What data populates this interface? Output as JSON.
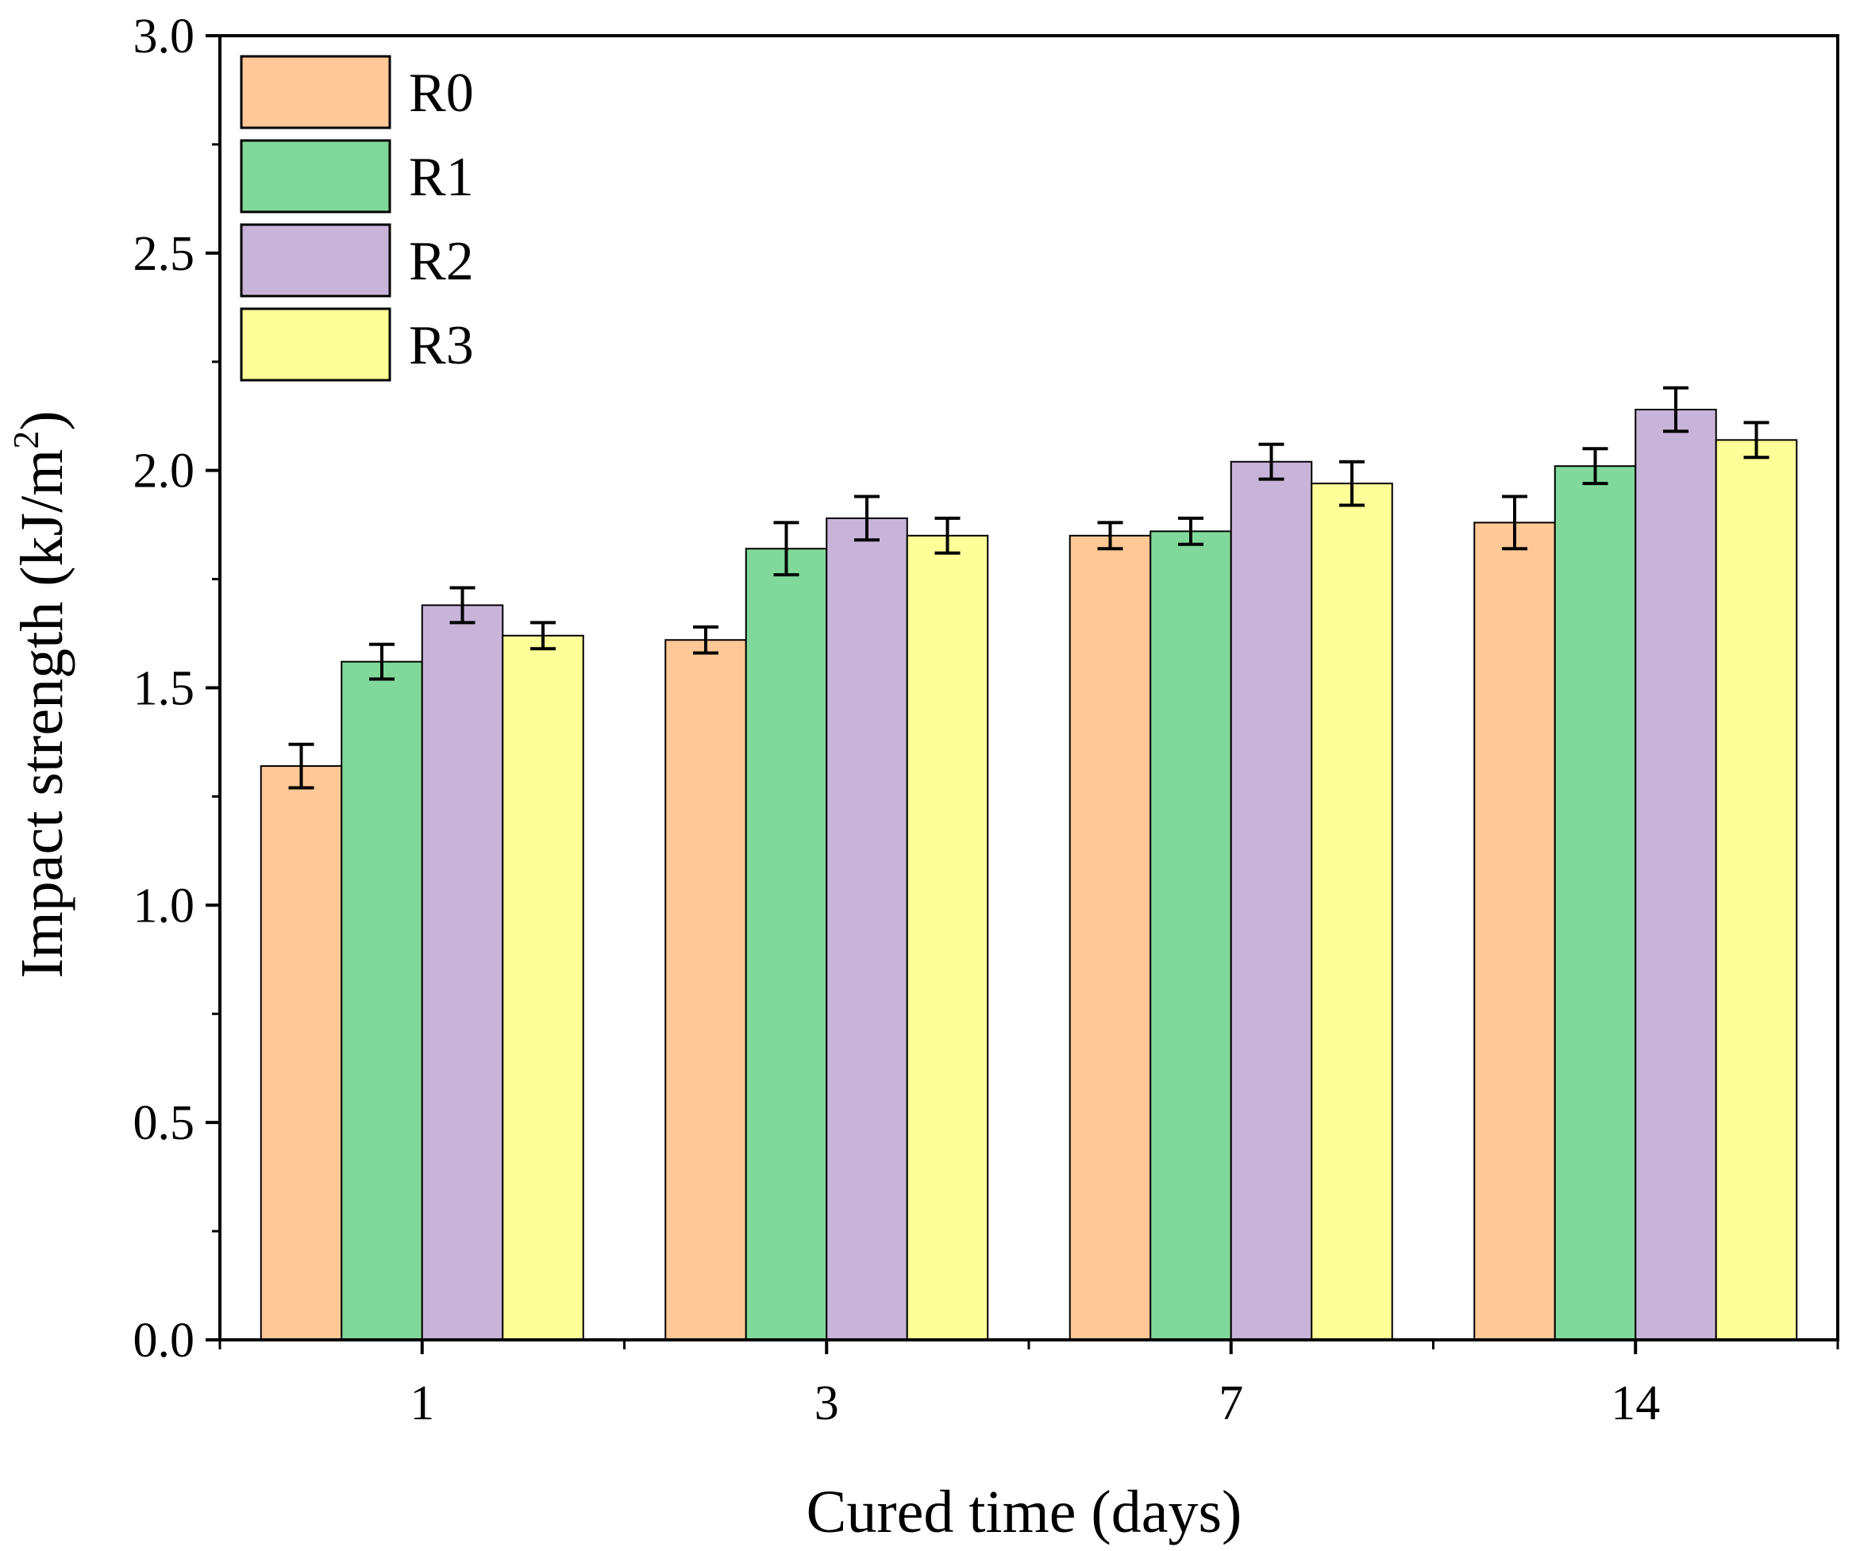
{
  "chart_data": {
    "type": "bar",
    "xlabel": "Cured time (days)",
    "ylabel_main": "Impact strength (kJ/m",
    "ylabel_sup": "2",
    "ylabel_close": ")",
    "ylim": [
      0,
      3.0
    ],
    "yticks": [
      "0.0",
      "0.5",
      "1.0",
      "1.5",
      "2.0",
      "2.5",
      "3.0"
    ],
    "categories": [
      "1",
      "3",
      "7",
      "14"
    ],
    "legend_position": "top-left",
    "series": [
      {
        "name": "R0",
        "color": "#FFC896",
        "values": [
          1.32,
          1.61,
          1.85,
          1.88
        ],
        "errors": [
          0.05,
          0.03,
          0.03,
          0.06
        ]
      },
      {
        "name": "R1",
        "color": "#80D99A",
        "values": [
          1.56,
          1.82,
          1.86,
          2.01
        ],
        "errors": [
          0.04,
          0.06,
          0.03,
          0.04
        ]
      },
      {
        "name": "R2",
        "color": "#C8B4D9",
        "values": [
          1.69,
          1.89,
          2.02,
          2.14
        ],
        "errors": [
          0.04,
          0.05,
          0.04,
          0.05
        ]
      },
      {
        "name": "R3",
        "color": "#FFFF99",
        "values": [
          1.62,
          1.85,
          1.97,
          2.07
        ],
        "errors": [
          0.03,
          0.04,
          0.05,
          0.04
        ]
      }
    ]
  }
}
